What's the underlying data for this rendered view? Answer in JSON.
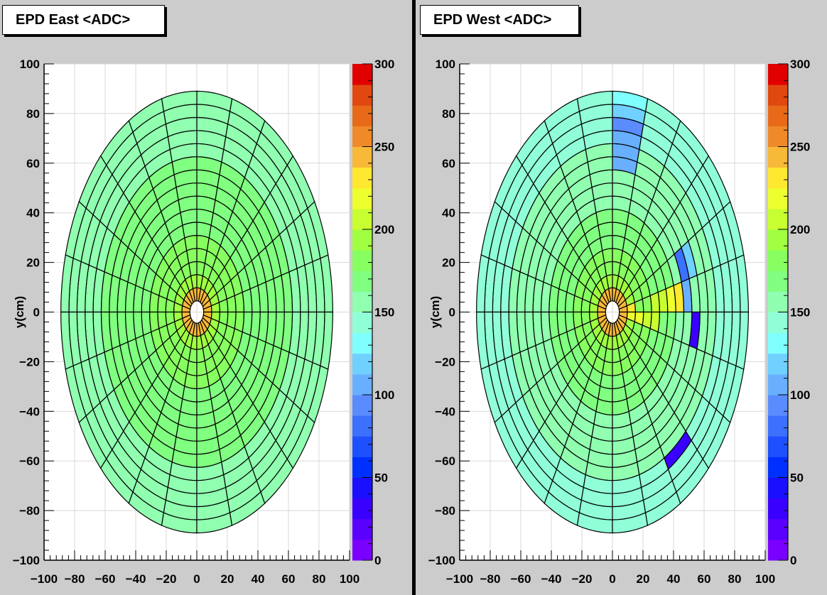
{
  "chart_data": [
    {
      "type": "heatmap",
      "title": "EPD East <ADC>",
      "xlabel": "",
      "ylabel": "y(cm)",
      "xlim": [
        -100,
        100
      ],
      "ylim": [
        -100,
        100
      ],
      "x_ticks": [
        -100,
        -80,
        -60,
        -40,
        -20,
        0,
        20,
        40,
        60,
        80,
        100
      ],
      "y_ticks": [
        -100,
        -80,
        -60,
        -40,
        -20,
        0,
        20,
        40,
        60,
        80,
        100
      ],
      "colorbar": {
        "min": 0,
        "max": 300,
        "ticks": [
          0,
          50,
          100,
          150,
          200,
          250,
          300
        ]
      },
      "grid": true,
      "geometry": {
        "inner_radius": 4.5,
        "outer_radius": 89,
        "rings": 16,
        "sectors": 24
      },
      "ring_values": [
        245,
        195,
        185,
        180,
        175,
        172,
        170,
        168,
        166,
        165,
        163,
        161,
        160,
        158,
        156,
        155
      ],
      "cell_overrides": []
    },
    {
      "type": "heatmap",
      "title": "EPD West <ADC>",
      "xlabel": "",
      "ylabel": "y(cm)",
      "xlim": [
        -100,
        100
      ],
      "ylim": [
        -100,
        100
      ],
      "x_ticks": [
        -100,
        -80,
        -60,
        -40,
        -20,
        0,
        20,
        40,
        60,
        80,
        100
      ],
      "y_ticks": [
        -100,
        -80,
        -60,
        -40,
        -20,
        0,
        20,
        40,
        60,
        80,
        100
      ],
      "colorbar": {
        "min": 0,
        "max": 300,
        "ticks": [
          0,
          50,
          100,
          150,
          200,
          250,
          300
        ]
      },
      "grid": true,
      "geometry": {
        "inner_radius": 4.5,
        "outer_radius": 89,
        "rings": 16,
        "sectors": 24
      },
      "ring_values": [
        240,
        195,
        185,
        178,
        172,
        168,
        164,
        160,
        157,
        155,
        152,
        150,
        148,
        146,
        145,
        144
      ],
      "cell_overrides": [
        {
          "ring": 1,
          "sector": 0,
          "value": 225
        },
        {
          "ring": 1,
          "sector": 23,
          "value": 220
        },
        {
          "ring": 2,
          "sector": 23,
          "value": 215
        },
        {
          "ring": 3,
          "sector": 23,
          "value": 210
        },
        {
          "ring": 4,
          "sector": 23,
          "value": 205
        },
        {
          "ring": 4,
          "sector": 0,
          "value": 205
        },
        {
          "ring": 5,
          "sector": 0,
          "value": 210
        },
        {
          "ring": 6,
          "sector": 0,
          "value": 215
        },
        {
          "ring": 7,
          "sector": 0,
          "value": 225
        },
        {
          "ring": 8,
          "sector": 0,
          "value": 110
        },
        {
          "ring": 8,
          "sector": 1,
          "value": 80
        },
        {
          "ring": 9,
          "sector": 23,
          "value": 30
        },
        {
          "ring": 9,
          "sector": 1,
          "value": 120
        },
        {
          "ring": 12,
          "sector": 20,
          "value": 30
        },
        {
          "ring": 10,
          "sector": 5,
          "value": 105
        },
        {
          "ring": 11,
          "sector": 5,
          "value": 110
        },
        {
          "ring": 12,
          "sector": 5,
          "value": 112
        },
        {
          "ring": 13,
          "sector": 5,
          "value": 95
        },
        {
          "ring": 14,
          "sector": 5,
          "value": 115
        },
        {
          "ring": 15,
          "sector": 5,
          "value": 125
        }
      ]
    }
  ]
}
